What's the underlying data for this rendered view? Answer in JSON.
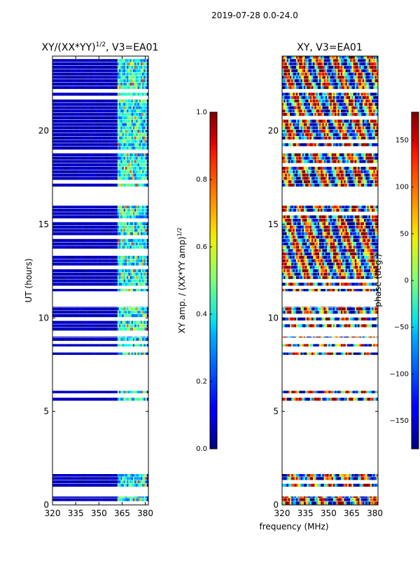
{
  "figure": {
    "suptitle": "2019-07-28 0.0-24.0",
    "shared_xlabel": "frequency (MHz)"
  },
  "chart_data": [
    {
      "type": "heatmap",
      "title_prefix": "XY/(XX*YY)",
      "title_exponent": "1/2",
      "title_suffix": ", V3=EA01",
      "xlabel": "frequency (MHz)",
      "ylabel": "UT (hours)",
      "xlim": [
        320,
        382
      ],
      "ylim": [
        0,
        24
      ],
      "xticks": [
        320,
        335,
        350,
        365,
        380
      ],
      "yticks": [
        0,
        5,
        10,
        15,
        20
      ],
      "colorbar": {
        "label_prefix": "XY amp. / (XX*YY amp)",
        "label_exponent": "1/2",
        "range": [
          0.0,
          1.0
        ],
        "ticks": [
          "0.0",
          "0.2",
          "0.4",
          "0.6",
          "0.8",
          "1.0"
        ],
        "colormap": "jet"
      },
      "data_time_ranges_hours": [
        [
          0.0,
          0.45
        ],
        [
          0.95,
          1.65
        ],
        [
          5.55,
          5.75
        ],
        [
          5.95,
          6.1
        ],
        [
          8.0,
          8.15
        ],
        [
          8.45,
          8.6
        ],
        [
          8.75,
          9.0
        ],
        [
          9.3,
          10.6
        ],
        [
          11.4,
          11.55
        ],
        [
          11.7,
          16.0
        ],
        [
          17.0,
          24.0
        ]
      ]
    },
    {
      "type": "heatmap",
      "title": "XY, V3=EA01",
      "xlabel": "frequency (MHz)",
      "ylabel": "",
      "xlim": [
        320,
        382
      ],
      "ylim": [
        0,
        24
      ],
      "xticks": [
        320,
        335,
        350,
        365,
        380
      ],
      "yticks": [
        0,
        5,
        10,
        15,
        20
      ],
      "colorbar": {
        "label": "phase (deg.)",
        "range": [
          -180,
          180
        ],
        "ticks": [
          "−150",
          "−100",
          "−50",
          "0",
          "50",
          "100",
          "150"
        ],
        "tick_values": [
          -150,
          -100,
          -50,
          0,
          50,
          100,
          150
        ],
        "colormap": "jet"
      },
      "data_time_ranges_hours": [
        [
          0.0,
          0.45
        ],
        [
          0.95,
          1.65
        ],
        [
          5.55,
          5.75
        ],
        [
          5.95,
          6.1
        ],
        [
          8.0,
          8.15
        ],
        [
          8.45,
          8.6
        ],
        [
          8.75,
          9.0
        ],
        [
          9.3,
          10.6
        ],
        [
          11.4,
          11.55
        ],
        [
          11.7,
          16.0
        ],
        [
          17.0,
          24.0
        ]
      ]
    }
  ]
}
